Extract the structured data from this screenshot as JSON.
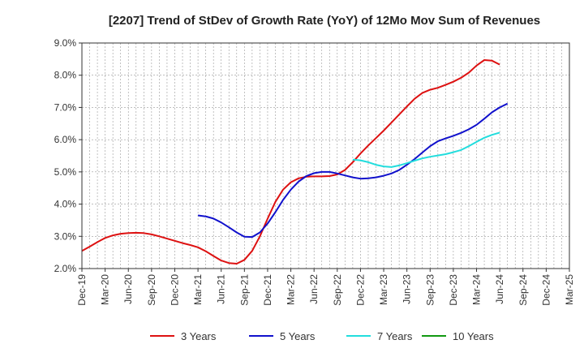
{
  "chart_data": {
    "type": "line",
    "title": "[2207]  Trend of StDev of Growth Rate (YoY) of 12Mo Mov Sum of Revenues",
    "xlabel": "",
    "ylabel": "",
    "ylim": [
      2.0,
      9.0
    ],
    "y_ticks": [
      "2.0%",
      "3.0%",
      "4.0%",
      "5.0%",
      "6.0%",
      "7.0%",
      "8.0%",
      "9.0%"
    ],
    "x_tick_labels": [
      "Dec-19",
      "Mar-20",
      "Jun-20",
      "Sep-20",
      "Dec-20",
      "Mar-21",
      "Jun-21",
      "Sep-21",
      "Dec-21",
      "Mar-22",
      "Jun-22",
      "Sep-22",
      "Dec-22",
      "Mar-23",
      "Jun-23",
      "Sep-23",
      "Dec-23",
      "Mar-24",
      "Jun-24",
      "Sep-24",
      "Dec-24",
      "Mar-25"
    ],
    "grid": true,
    "legend_position": "bottom",
    "series": [
      {
        "name": "3 Years",
        "color": "#dd1111",
        "start_index": 0,
        "values": [
          2.55,
          2.68,
          2.82,
          2.95,
          3.03,
          3.08,
          3.1,
          3.11,
          3.1,
          3.06,
          3.0,
          2.93,
          2.86,
          2.79,
          2.73,
          2.66,
          2.54,
          2.39,
          2.25,
          2.17,
          2.15,
          2.27,
          2.55,
          3.0,
          3.55,
          4.07,
          4.45,
          4.68,
          4.8,
          4.85,
          4.86,
          4.86,
          4.87,
          4.92,
          5.06,
          5.3,
          5.57,
          5.82,
          6.05,
          6.28,
          6.53,
          6.78,
          7.03,
          7.27,
          7.45,
          7.55,
          7.61,
          7.7,
          7.8,
          7.92,
          8.08,
          8.3,
          8.47,
          8.45,
          8.33
        ]
      },
      {
        "name": "5 Years",
        "color": "#1111cc",
        "start_index": 15,
        "values": [
          3.65,
          3.62,
          3.55,
          3.43,
          3.28,
          3.12,
          2.99,
          2.98,
          3.12,
          3.4,
          3.75,
          4.13,
          4.45,
          4.7,
          4.87,
          4.96,
          5.0,
          5.0,
          4.95,
          4.89,
          4.83,
          4.79,
          4.8,
          4.83,
          4.88,
          4.95,
          5.06,
          5.22,
          5.4,
          5.6,
          5.8,
          5.95,
          6.04,
          6.12,
          6.21,
          6.32,
          6.46,
          6.65,
          6.85,
          7.0,
          7.12
        ]
      },
      {
        "name": "7 Years",
        "color": "#22dddd",
        "start_index": 35,
        "values": [
          5.38,
          5.36,
          5.3,
          5.22,
          5.17,
          5.15,
          5.2,
          5.27,
          5.35,
          5.42,
          5.47,
          5.51,
          5.55,
          5.61,
          5.68,
          5.8,
          5.93,
          6.06,
          6.15,
          6.22
        ]
      },
      {
        "name": "10 Years",
        "color": "#119911",
        "start_index": 0,
        "values": []
      }
    ]
  }
}
